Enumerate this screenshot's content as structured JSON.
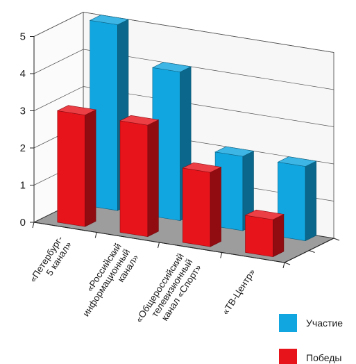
{
  "chart_data": {
    "type": "bar",
    "categories": [
      [
        "«Петербург-",
        "5 канал»"
      ],
      [
        "«Российский",
        "информационный",
        "канал»"
      ],
      [
        "«Общероссийский",
        "телевизионный",
        "канал «Спорт»"
      ],
      [
        "«ТВ-Центр»"
      ]
    ],
    "series": [
      {
        "name": "Участие",
        "values": [
          5,
          4,
          2,
          2
        ],
        "color": "#12a6e0"
      },
      {
        "name": "Победы",
        "values": [
          3,
          3,
          2,
          1
        ],
        "color": "#e8141c"
      }
    ],
    "ylim": [
      0,
      5
    ],
    "yticks": [
      "0",
      "1",
      "2",
      "3",
      "4",
      "5"
    ],
    "grid": true,
    "legend_position": "bottom-right",
    "title": "",
    "xlabel": "",
    "ylabel": ""
  }
}
